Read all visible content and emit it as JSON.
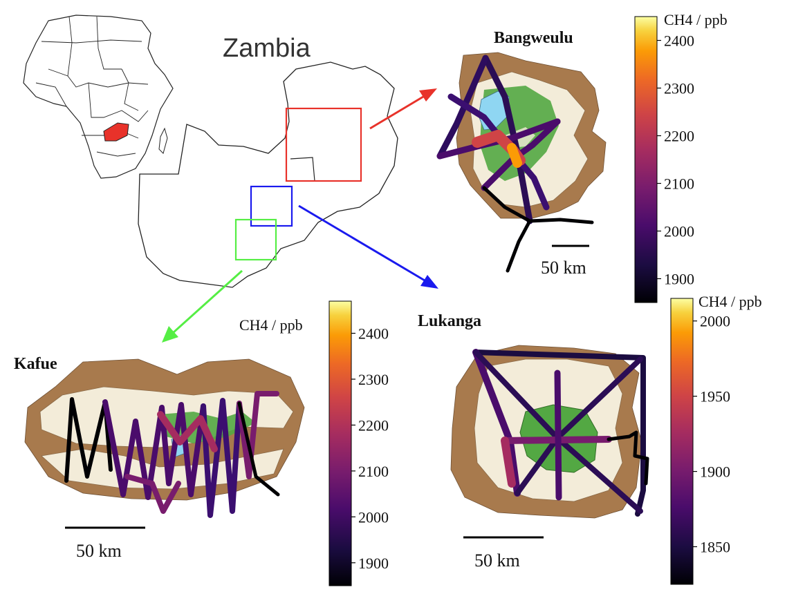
{
  "country_label": "Zambia",
  "sites": {
    "bangweulu": {
      "name": "Bangweulu",
      "scale": "50 km"
    },
    "lukanga": {
      "name": "Lukanga",
      "scale": "50 km"
    },
    "kafue": {
      "name": "Kafue",
      "scale": "50 km"
    }
  },
  "colors": {
    "bangweulu_box": "#e8322a",
    "lukanga_box": "#1a1aee",
    "kafue_box": "#55ee44",
    "wetland_brown": "#a87a4d",
    "dry_cream": "#f3ecd9",
    "water_blue": "#8fd6f2",
    "green": "#53a843"
  },
  "colorbars": [
    {
      "id": "bangweulu",
      "title": "CH4 / ppb",
      "ticks": [
        "2400",
        "2300",
        "2200",
        "2100",
        "2000",
        "1900"
      ],
      "range": [
        1850,
        2450
      ]
    },
    {
      "id": "kafue",
      "title": "CH4 / ppb",
      "ticks": [
        "2400",
        "2300",
        "2200",
        "2100",
        "2000",
        "1900"
      ],
      "range": [
        1850,
        2470
      ]
    },
    {
      "id": "lukanga",
      "title": "CH4 / ppb",
      "ticks": [
        "2000",
        "1950",
        "1900",
        "1850"
      ],
      "range": [
        1825,
        2015
      ]
    }
  ]
}
